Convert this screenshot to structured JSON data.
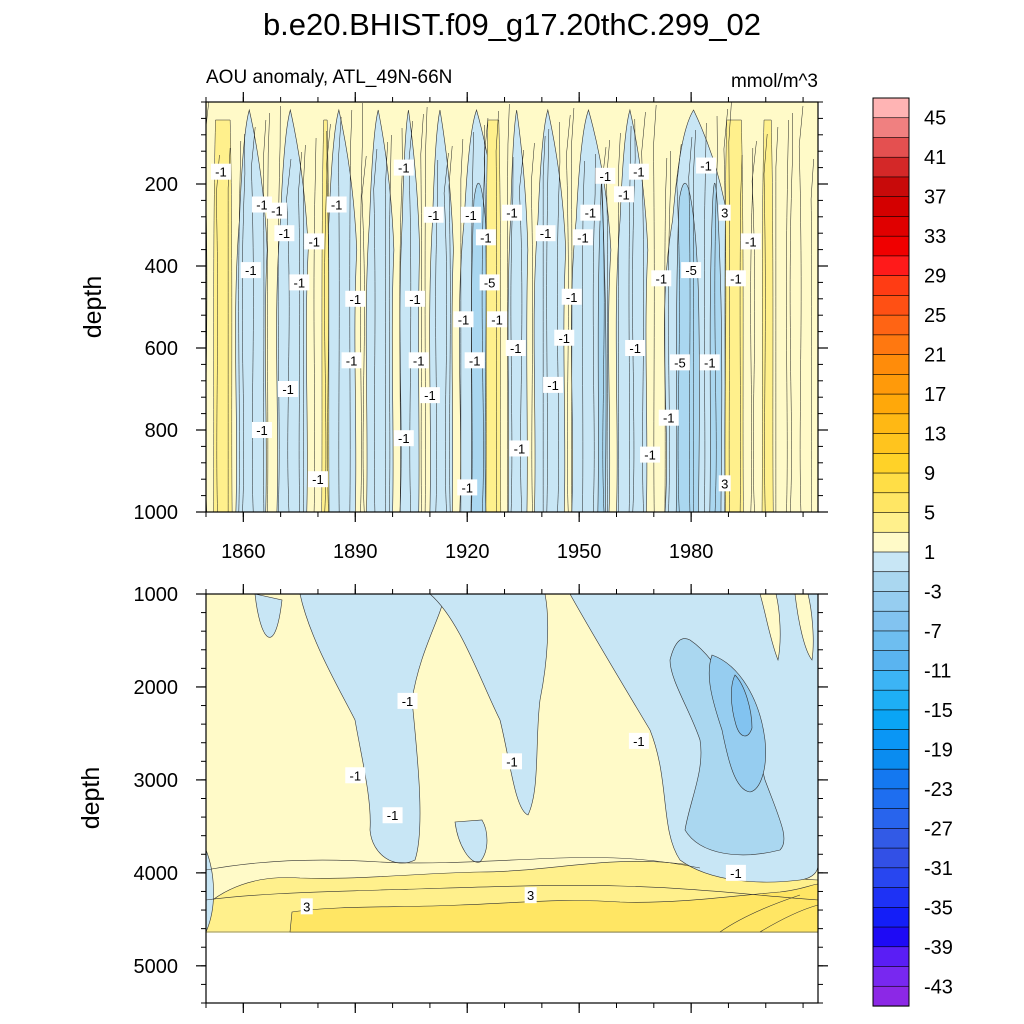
{
  "chart_data": {
    "type": "heatmap",
    "title": "b.e20.BHIST.f09_g17.20thC.299_02",
    "subtitle_left": "AOU anomaly, ATL_49N-66N",
    "subtitle_right": "mmol/m^3",
    "colorbar": {
      "levels": [
        -45,
        -43,
        -41,
        -39,
        -37,
        -35,
        -33,
        -31,
        -29,
        -27,
        -25,
        -23,
        -21,
        -19,
        -17,
        -15,
        -13,
        -11,
        -9,
        -7,
        -5,
        -3,
        -1,
        1,
        3,
        5,
        7,
        9,
        11,
        13,
        15,
        17,
        19,
        21,
        23,
        25,
        27,
        29,
        31,
        33,
        35,
        37,
        39,
        41,
        43,
        45
      ],
      "labels": [
        "45",
        "41",
        "37",
        "33",
        "29",
        "25",
        "21",
        "17",
        "13",
        "9",
        "5",
        "1",
        "-3",
        "-7",
        "-11",
        "-15",
        "-19",
        "-23",
        "-27",
        "-31",
        "-35",
        "-39",
        "-43"
      ],
      "colors": [
        "#ffb4b4",
        "#f08080",
        "#e45050",
        "#d42828",
        "#c80a0a",
        "#d40000",
        "#e00000",
        "#f00000",
        "#ff1a1a",
        "#ff3c14",
        "#ff5014",
        "#ff6414",
        "#ff7810",
        "#ff8c0a",
        "#ff9a0a",
        "#ffa80a",
        "#ffb814",
        "#ffc41e",
        "#ffd228",
        "#ffde46",
        "#ffe664",
        "#fff08c",
        "#fffac8",
        "#c8e6f5",
        "#aad7f0",
        "#96cdf0",
        "#82c3f0",
        "#6ebef0",
        "#5ab4f0",
        "#3cb4f5",
        "#1eaff5",
        "#0aa5f5",
        "#0a96f5",
        "#0a8cf0",
        "#1478f0",
        "#1e6ef0",
        "#2864ed",
        "#325ae6",
        "#3250e6",
        "#2846f0",
        "#1e32f5",
        "#141ef8",
        "#1e0af5",
        "#5a1ef5",
        "#7828f0",
        "#8c28e6"
      ]
    },
    "top_panel": {
      "ylabel": "depth",
      "xlabel": "",
      "xlim": [
        1850,
        2014
      ],
      "ylim": [
        1000,
        0
      ],
      "xticks": [
        "1860",
        "1890",
        "1920",
        "1950",
        "1980"
      ],
      "yticks": [
        "200",
        "400",
        "600",
        "800",
        "1000"
      ],
      "contour_labels": [
        {
          "text": "-1",
          "x": 1854,
          "y": 170
        },
        {
          "text": "-1",
          "x": 1865,
          "y": 250
        },
        {
          "text": "-1",
          "x": 1869,
          "y": 265
        },
        {
          "text": "-1",
          "x": 1871,
          "y": 320
        },
        {
          "text": "-1",
          "x": 1862,
          "y": 410
        },
        {
          "text": "-1",
          "x": 1875,
          "y": 440
        },
        {
          "text": "-1",
          "x": 1879,
          "y": 340
        },
        {
          "text": "-1",
          "x": 1885,
          "y": 250
        },
        {
          "text": "-1",
          "x": 1890,
          "y": 480
        },
        {
          "text": "-1",
          "x": 1889,
          "y": 630
        },
        {
          "text": "-1",
          "x": 1872,
          "y": 700
        },
        {
          "text": "-1",
          "x": 1865,
          "y": 800
        },
        {
          "text": "-1",
          "x": 1880,
          "y": 920
        },
        {
          "text": "-1",
          "x": 1903,
          "y": 160
        },
        {
          "text": "-1",
          "x": 1911,
          "y": 275
        },
        {
          "text": "-1",
          "x": 1906,
          "y": 480
        },
        {
          "text": "-1",
          "x": 1907,
          "y": 630
        },
        {
          "text": "-1",
          "x": 1910,
          "y": 715
        },
        {
          "text": "-1",
          "x": 1903,
          "y": 820
        },
        {
          "text": "-1",
          "x": 1919,
          "y": 530
        },
        {
          "text": "-1",
          "x": 1921,
          "y": 275
        },
        {
          "text": "-1",
          "x": 1925,
          "y": 330
        },
        {
          "text": "-5",
          "x": 1926,
          "y": 440
        },
        {
          "text": "-1",
          "x": 1928,
          "y": 530
        },
        {
          "text": "-1",
          "x": 1922,
          "y": 630
        },
        {
          "text": "-1",
          "x": 1920,
          "y": 940
        },
        {
          "text": "-1",
          "x": 1932,
          "y": 270
        },
        {
          "text": "-1",
          "x": 1933,
          "y": 600
        },
        {
          "text": "-1",
          "x": 1934,
          "y": 845
        },
        {
          "text": "-1",
          "x": 1941,
          "y": 320
        },
        {
          "text": "-1",
          "x": 1943,
          "y": 690
        },
        {
          "text": "-1",
          "x": 1946,
          "y": 575
        },
        {
          "text": "-1",
          "x": 1948,
          "y": 475
        },
        {
          "text": "-1",
          "x": 1951,
          "y": 330
        },
        {
          "text": "-1",
          "x": 1953,
          "y": 270
        },
        {
          "text": "-1",
          "x": 1957,
          "y": 180
        },
        {
          "text": "-1",
          "x": 1962,
          "y": 225
        },
        {
          "text": "-1",
          "x": 1966,
          "y": 170
        },
        {
          "text": "-1",
          "x": 1965,
          "y": 600
        },
        {
          "text": "-1",
          "x": 1969,
          "y": 860
        },
        {
          "text": "-1",
          "x": 1972,
          "y": 430
        },
        {
          "text": "-1",
          "x": 1974,
          "y": 770
        },
        {
          "text": "-1",
          "x": 1984,
          "y": 155
        },
        {
          "text": "-5",
          "x": 1980,
          "y": 410
        },
        {
          "text": "-5",
          "x": 1977,
          "y": 635
        },
        {
          "text": "-1",
          "x": 1985,
          "y": 635
        },
        {
          "text": "3",
          "x": 1989,
          "y": 270
        },
        {
          "text": "-1",
          "x": 1992,
          "y": 430
        },
        {
          "text": "-1",
          "x": 1996,
          "y": 340
        },
        {
          "text": "3",
          "x": 1989,
          "y": 930
        }
      ]
    },
    "bottom_panel": {
      "ylabel": "depth",
      "xlabel": "",
      "xlim": [
        1850,
        2014
      ],
      "ylim": [
        5400,
        1000
      ],
      "yticks": [
        "1000",
        "2000",
        "3000",
        "4000",
        "5000"
      ],
      "data_bottom_depth": 4630,
      "contour_labels": [
        {
          "text": "-1",
          "x": 1904,
          "y": 2150
        },
        {
          "text": "-1",
          "x": 1890,
          "y": 2950
        },
        {
          "text": "-1",
          "x": 1900,
          "y": 3380
        },
        {
          "text": "-1",
          "x": 1932,
          "y": 2800
        },
        {
          "text": "-1",
          "x": 1966,
          "y": 2580
        },
        {
          "text": "-1",
          "x": 1992,
          "y": 4000
        },
        {
          "text": "3",
          "x": 1877,
          "y": 4360
        },
        {
          "text": "3",
          "x": 1937,
          "y": 4240
        }
      ]
    }
  }
}
